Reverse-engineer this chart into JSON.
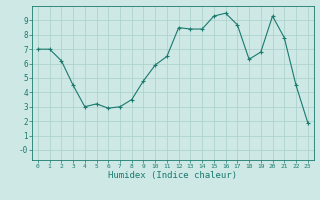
{
  "x": [
    0,
    1,
    2,
    3,
    4,
    5,
    6,
    7,
    8,
    9,
    10,
    11,
    12,
    13,
    14,
    15,
    16,
    17,
    18,
    19,
    20,
    21,
    22,
    23
  ],
  "y": [
    7.0,
    7.0,
    6.2,
    4.5,
    3.0,
    3.2,
    2.9,
    3.0,
    3.5,
    4.8,
    5.9,
    6.5,
    8.5,
    8.4,
    8.4,
    9.3,
    9.5,
    8.7,
    6.3,
    6.8,
    9.3,
    7.8,
    4.5,
    1.9
  ],
  "xlabel": "Humidex (Indice chaleur)",
  "line_color": "#1a7a6e",
  "marker": "+",
  "bg_color": "#cde8e5",
  "grid_color": "#aacfcc",
  "tick_color": "#1a7a6e",
  "label_color": "#1a7a6e",
  "xlim": [
    -0.5,
    23.5
  ],
  "ylim": [
    -0.7,
    10.0
  ],
  "yticks": [
    0,
    1,
    2,
    3,
    4,
    5,
    6,
    7,
    8,
    9
  ],
  "xticks": [
    0,
    1,
    2,
    3,
    4,
    5,
    6,
    7,
    8,
    9,
    10,
    11,
    12,
    13,
    14,
    15,
    16,
    17,
    18,
    19,
    20,
    21,
    22,
    23
  ]
}
